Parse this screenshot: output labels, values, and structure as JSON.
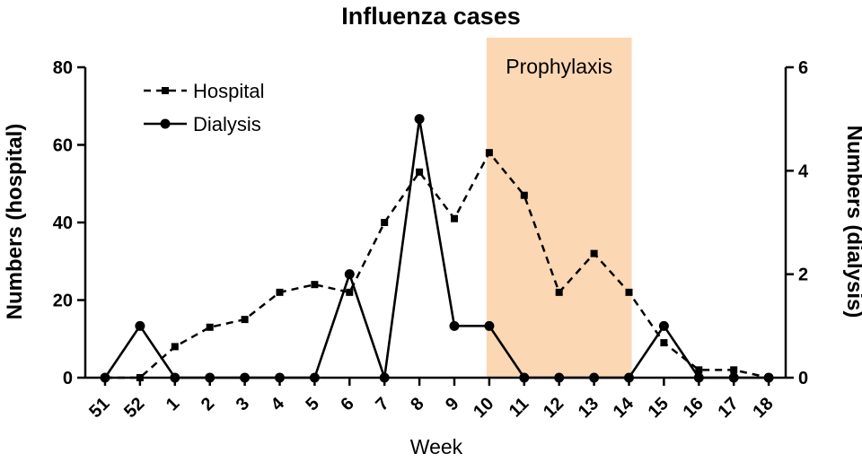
{
  "chart_data": {
    "type": "line",
    "title": "Influenza cases",
    "xlabel": "Week",
    "ylabel_left": "Numbers (hospital)",
    "ylabel_right": "Numbers (dialysis)",
    "categories": [
      "51",
      "52",
      "1",
      "2",
      "3",
      "4",
      "5",
      "6",
      "7",
      "8",
      "9",
      "10",
      "11",
      "12",
      "13",
      "14",
      "15",
      "16",
      "17",
      "18"
    ],
    "ylim_left": [
      0,
      80
    ],
    "yticks_left": [
      0,
      20,
      40,
      60,
      80
    ],
    "ylim_right": [
      0,
      6
    ],
    "yticks_right": [
      0,
      2,
      4,
      6
    ],
    "series": [
      {
        "name": "Hospital",
        "axis": "left",
        "style": "dashed",
        "marker": "square",
        "values": [
          0,
          0,
          8,
          13,
          15,
          22,
          24,
          22,
          40,
          53,
          41,
          58,
          47,
          22,
          32,
          22,
          9,
          2,
          2,
          0
        ]
      },
      {
        "name": "Dialysis",
        "axis": "right",
        "style": "solid",
        "marker": "circle",
        "values": [
          0,
          1,
          0,
          0,
          0,
          0,
          0,
          2,
          0,
          5,
          1,
          1,
          0,
          0,
          0,
          0,
          1,
          0,
          0,
          0
        ]
      }
    ],
    "shaded_region": {
      "label": "Prophylaxis",
      "from_week": "10",
      "to_week": "14",
      "color": "#f9c99b"
    },
    "legend": "top-left",
    "grid": false
  }
}
